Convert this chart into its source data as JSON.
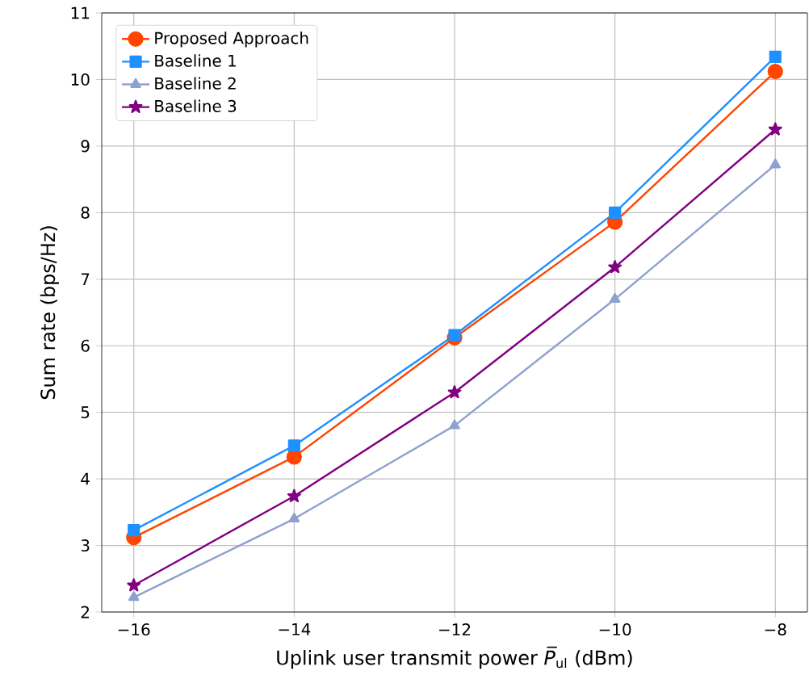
{
  "chart_data": {
    "type": "line",
    "xlabel": "Uplink user transmit power *P̅*$_{ul}$ (dBm)",
    "ylabel": "Sum rate (bps/Hz)",
    "x": [
      -16,
      -14,
      -12,
      -10,
      -8
    ],
    "series": [
      {
        "name": "Proposed Approach",
        "color": "#ff4500",
        "marker": "circle",
        "values": [
          3.12,
          4.33,
          6.12,
          7.86,
          10.12
        ]
      },
      {
        "name": "Baseline 1",
        "color": "#1e90ff",
        "marker": "square",
        "values": [
          3.23,
          4.5,
          6.16,
          8.0,
          10.34
        ]
      },
      {
        "name": "Baseline 2",
        "color": "#8fa1cf",
        "marker": "triangle",
        "values": [
          2.22,
          3.4,
          4.8,
          6.7,
          8.72
        ]
      },
      {
        "name": "Baseline 3",
        "color": "#800080",
        "marker": "star",
        "values": [
          2.4,
          3.74,
          5.3,
          7.18,
          9.25
        ]
      }
    ],
    "xlim": [
      -16.4,
      -7.6
    ],
    "ylim": [
      2,
      11
    ],
    "xticks": [
      {
        "value": -16,
        "label": "−16"
      },
      {
        "value": -14,
        "label": "−14"
      },
      {
        "value": -12,
        "label": "−12"
      },
      {
        "value": -10,
        "label": "−10"
      },
      {
        "value": -8,
        "label": "−8"
      }
    ],
    "yticks": [
      2,
      3,
      4,
      5,
      6,
      7,
      8,
      9,
      10,
      11
    ],
    "grid": true,
    "legend": "top left",
    "line_style": "solid"
  }
}
